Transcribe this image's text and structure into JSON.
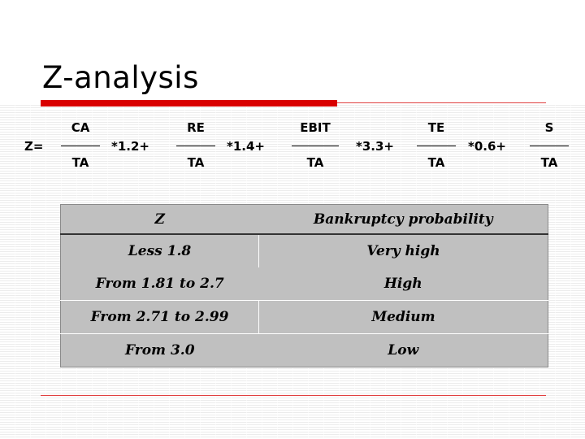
{
  "slide": {
    "title": "Z-analysis"
  },
  "formula": {
    "lhs": "Z=",
    "terms": [
      {
        "num": "CA",
        "den": "TA",
        "op": "*1.2+"
      },
      {
        "num": "RE",
        "den": "TA",
        "op": "*1.4+"
      },
      {
        "num": "EBIT",
        "den": "TA",
        "op": "*3.3+"
      },
      {
        "num": "TE",
        "den": "TA",
        "op": "*0.6+"
      },
      {
        "num": "S",
        "den": "TA",
        "op": ""
      }
    ]
  },
  "table": {
    "headers": [
      "Z",
      "Bankruptcy probability"
    ],
    "rows": [
      [
        "Less 1.8",
        "Very high"
      ],
      [
        "From 1.81 to 2.7",
        "High"
      ],
      [
        "From 2.71 to 2.99",
        "Medium"
      ],
      [
        "From 3.0",
        "Low"
      ]
    ]
  },
  "colors": {
    "accent_red": "#d90000",
    "table_fill": "#c0c0c0"
  }
}
